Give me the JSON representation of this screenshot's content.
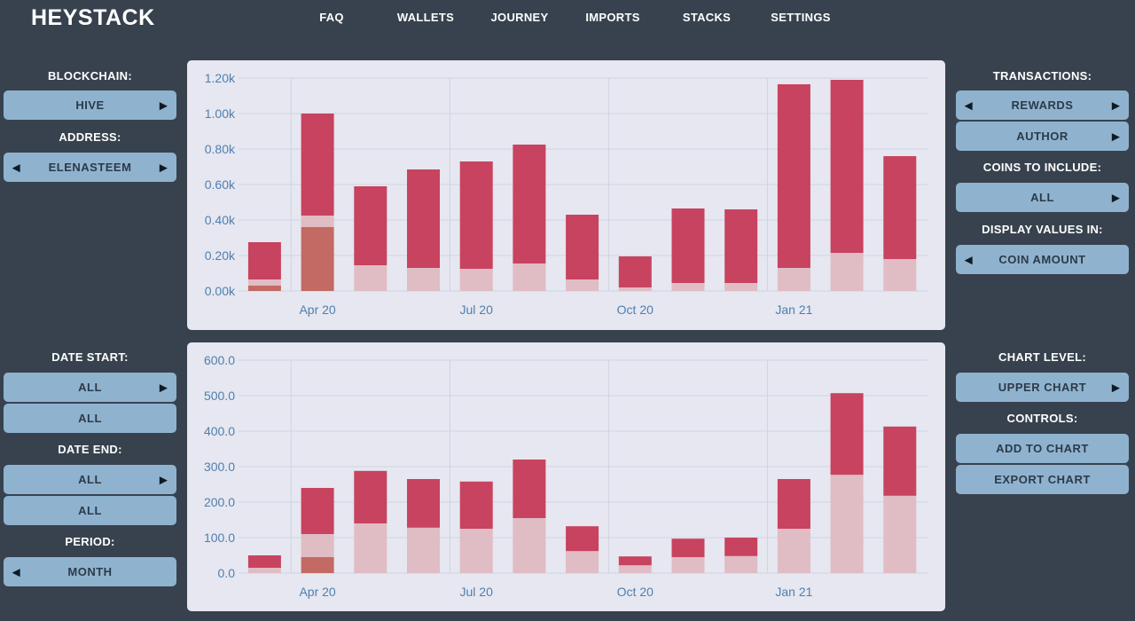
{
  "app": {
    "title": "HEYSTACK"
  },
  "nav": {
    "items": [
      "FAQ",
      "WALLETS",
      "JOURNEY",
      "IMPORTS",
      "STACKS",
      "SETTINGS"
    ]
  },
  "left": {
    "blockchain_label": "BLOCKCHAIN:",
    "blockchain_value": "HIVE",
    "address_label": "ADDRESS:",
    "address_value": "ELENASTEEM",
    "date_start_label": "DATE START:",
    "date_start_value1": "ALL",
    "date_start_value2": "ALL",
    "date_end_label": "DATE END:",
    "date_end_value1": "ALL",
    "date_end_value2": "ALL",
    "period_label": "PERIOD:",
    "period_value": "MONTH"
  },
  "right": {
    "transactions_label": "TRANSACTIONS:",
    "transactions_value1": "REWARDS",
    "transactions_value2": "AUTHOR",
    "coins_label": "COINS TO INCLUDE:",
    "coins_value": "ALL",
    "display_label": "DISPLAY VALUES IN:",
    "display_value": "COIN AMOUNT",
    "chart_level_label": "CHART LEVEL:",
    "chart_level_value": "UPPER CHART",
    "controls_label": "CONTROLS:",
    "add_to_chart": "ADD TO CHART",
    "export_chart": "EXPORT CHART"
  },
  "colors": {
    "series_dark": "#c7435f",
    "series_light": "#e0bcc4",
    "series_brown": "#c26a63",
    "tick": "#4e7fb0"
  },
  "chart_data": [
    {
      "type": "bar",
      "stacked": true,
      "categories": [
        "Mar 20",
        "Apr 20",
        "May 20",
        "Jun 20",
        "Jul 20",
        "Aug 20",
        "Sep 20",
        "Oct 20",
        "Nov 20",
        "Dec 20",
        "Jan 21",
        "Feb 21",
        "Mar 21"
      ],
      "x_tick_labels": [
        "Apr 20",
        "Jul 20",
        "Oct 20",
        "Jan 21"
      ],
      "y_tick_labels": [
        "0.00k",
        "0.20k",
        "0.40k",
        "0.60k",
        "0.80k",
        "1.00k",
        "1.20k"
      ],
      "ylim": [
        0,
        1200
      ],
      "grid": true,
      "series": [
        {
          "color": "#c26a63",
          "values": [
            30,
            360,
            0,
            0,
            0,
            0,
            0,
            0,
            0,
            0,
            0,
            0,
            0
          ]
        },
        {
          "color": "#e0bcc4",
          "values": [
            35,
            65,
            145,
            130,
            125,
            155,
            65,
            20,
            45,
            45,
            130,
            215,
            180
          ]
        },
        {
          "color": "#c7435f",
          "values": [
            210,
            575,
            445,
            555,
            605,
            670,
            365,
            175,
            420,
            415,
            1035,
            975,
            580
          ]
        }
      ]
    },
    {
      "type": "bar",
      "stacked": true,
      "categories": [
        "Mar 20",
        "Apr 20",
        "May 20",
        "Jun 20",
        "Jul 20",
        "Aug 20",
        "Sep 20",
        "Oct 20",
        "Nov 20",
        "Dec 20",
        "Jan 21",
        "Feb 21",
        "Mar 21"
      ],
      "x_tick_labels": [
        "Apr 20",
        "Jul 20",
        "Oct 20",
        "Jan 21"
      ],
      "y_tick_labels": [
        "0.0",
        "100.0",
        "200.0",
        "300.0",
        "400.0",
        "500.0",
        "600.0"
      ],
      "ylim": [
        0,
        600
      ],
      "grid": true,
      "series": [
        {
          "color": "#c26a63",
          "values": [
            0,
            45,
            0,
            0,
            0,
            0,
            0,
            0,
            0,
            0,
            0,
            0,
            0
          ]
        },
        {
          "color": "#e0bcc4",
          "values": [
            15,
            65,
            140,
            128,
            125,
            155,
            62,
            22,
            45,
            48,
            125,
            277,
            218
          ]
        },
        {
          "color": "#c7435f",
          "values": [
            35,
            130,
            148,
            137,
            133,
            165,
            70,
            25,
            52,
            52,
            140,
            230,
            195
          ]
        }
      ]
    }
  ]
}
